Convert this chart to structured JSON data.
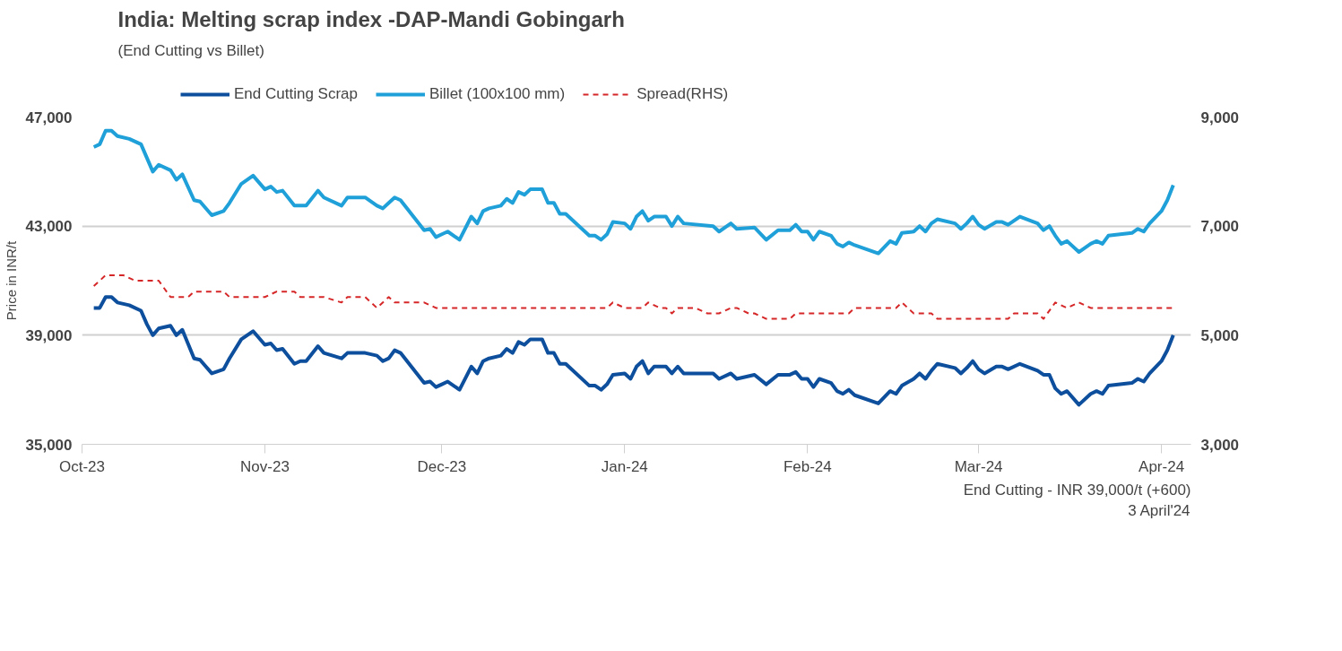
{
  "chart_data": {
    "type": "line",
    "title": "India: Melting scrap index -DAP-Mandi Gobingarh",
    "subtitle": "(End Cutting vs Billet)",
    "ylabel": "Price in INR/t",
    "x": [
      "2023-10-03",
      "2023-10-04",
      "2023-10-05",
      "2023-10-06",
      "2023-10-07",
      "2023-10-09",
      "2023-10-11",
      "2023-10-12",
      "2023-10-13",
      "2023-10-14",
      "2023-10-16",
      "2023-10-17",
      "2023-10-18",
      "2023-10-20",
      "2023-10-21",
      "2023-10-23",
      "2023-10-25",
      "2023-10-26",
      "2023-10-28",
      "2023-10-30",
      "2023-11-01",
      "2023-11-02",
      "2023-11-03",
      "2023-11-04",
      "2023-11-06",
      "2023-11-07",
      "2023-11-08",
      "2023-11-10",
      "2023-11-11",
      "2023-11-14",
      "2023-11-15",
      "2023-11-18",
      "2023-11-20",
      "2023-11-21",
      "2023-11-22",
      "2023-11-23",
      "2023-11-24",
      "2023-11-28",
      "2023-11-29",
      "2023-11-30",
      "2023-12-01",
      "2023-12-02",
      "2023-12-04",
      "2023-12-06",
      "2023-12-07",
      "2023-12-08",
      "2023-12-09",
      "2023-12-11",
      "2023-12-12",
      "2023-12-13",
      "2023-12-14",
      "2023-12-15",
      "2023-12-16",
      "2023-12-18",
      "2023-12-19",
      "2023-12-20",
      "2023-12-21",
      "2023-12-22",
      "2023-12-26",
      "2023-12-27",
      "2023-12-28",
      "2023-12-29",
      "2023-12-30",
      "2024-01-01",
      "2024-01-02",
      "2024-01-03",
      "2024-01-04",
      "2024-01-05",
      "2024-01-06",
      "2024-01-08",
      "2024-01-09",
      "2024-01-10",
      "2024-01-11",
      "2024-01-16",
      "2024-01-17",
      "2024-01-19",
      "2024-01-20",
      "2024-01-23",
      "2024-01-25",
      "2024-01-27",
      "2024-01-29",
      "2024-01-30",
      "2024-01-31",
      "2024-02-01",
      "2024-02-02",
      "2024-02-03",
      "2024-02-05",
      "2024-02-06",
      "2024-02-07",
      "2024-02-08",
      "2024-02-09",
      "2024-02-13",
      "2024-02-15",
      "2024-02-16",
      "2024-02-17",
      "2024-02-19",
      "2024-02-20",
      "2024-02-21",
      "2024-02-22",
      "2024-02-23",
      "2024-02-26",
      "2024-02-27",
      "2024-02-28",
      "2024-02-29",
      "2024-03-01",
      "2024-03-02",
      "2024-03-04",
      "2024-03-05",
      "2024-03-06",
      "2024-03-08",
      "2024-03-11",
      "2024-03-12",
      "2024-03-13",
      "2024-03-14",
      "2024-03-15",
      "2024-03-16",
      "2024-03-18",
      "2024-03-20",
      "2024-03-21",
      "2024-03-22",
      "2024-03-23",
      "2024-03-27",
      "2024-03-28",
      "2024-03-29",
      "2024-03-30",
      "2024-04-01",
      "2024-04-02",
      "2024-04-03"
    ],
    "series": [
      {
        "name": "End Cutting Scrap",
        "color": "#0d4f9c",
        "values": [
          40000,
          40000,
          40400,
          40400,
          40200,
          40100,
          39900,
          39400,
          39000,
          39250,
          39350,
          39000,
          39200,
          38150,
          38100,
          37600,
          37750,
          38150,
          38850,
          39150,
          38650,
          38700,
          38450,
          38500,
          37950,
          38050,
          38050,
          38600,
          38350,
          38150,
          38350,
          38350,
          38250,
          38050,
          38150,
          38450,
          38350,
          37250,
          37300,
          37100,
          37200,
          37300,
          37000,
          37850,
          37600,
          38050,
          38150,
          38250,
          38500,
          38350,
          38750,
          38650,
          38850,
          38850,
          38350,
          38350,
          37950,
          37950,
          37150,
          37150,
          37000,
          37200,
          37550,
          37600,
          37400,
          37850,
          38050,
          37600,
          37850,
          37850,
          37600,
          37850,
          37600,
          37600,
          37400,
          37600,
          37400,
          37550,
          37200,
          37550,
          37550,
          37650,
          37400,
          37400,
          37100,
          37400,
          37250,
          36950,
          36850,
          37000,
          36800,
          36500,
          36950,
          36850,
          37150,
          37400,
          37600,
          37400,
          37700,
          37950,
          37800,
          37600,
          37800,
          38050,
          37750,
          37600,
          37850,
          37850,
          37750,
          37950,
          37700,
          37550,
          37550,
          37050,
          36850,
          36950,
          36450,
          36850,
          36950,
          36850,
          37150,
          37250,
          37400,
          37300,
          37600,
          38050,
          38450,
          39000
        ]
      },
      {
        "name": "Billet (100x100 mm)",
        "color": "#1fa0d8",
        "values": [
          45900,
          46000,
          46500,
          46500,
          46300,
          46200,
          46000,
          45500,
          45000,
          45250,
          45050,
          44700,
          44900,
          43950,
          43900,
          43400,
          43550,
          43850,
          44550,
          44850,
          44350,
          44450,
          44250,
          44300,
          43750,
          43750,
          43750,
          44300,
          44050,
          43750,
          44050,
          44050,
          43750,
          43650,
          43850,
          44050,
          43950,
          42850,
          42900,
          42600,
          42700,
          42800,
          42500,
          43350,
          43100,
          43550,
          43650,
          43750,
          44000,
          43850,
          44250,
          44150,
          44350,
          44350,
          43850,
          43850,
          43450,
          43450,
          42650,
          42650,
          42500,
          42700,
          43150,
          43100,
          42900,
          43350,
          43550,
          43200,
          43350,
          43350,
          43000,
          43350,
          43100,
          43000,
          42800,
          43100,
          42900,
          42950,
          42500,
          42850,
          42850,
          43050,
          42800,
          42800,
          42500,
          42800,
          42650,
          42350,
          42250,
          42400,
          42300,
          42000,
          42450,
          42350,
          42750,
          42800,
          43000,
          42800,
          43100,
          43250,
          43100,
          42900,
          43100,
          43350,
          43050,
          42900,
          43150,
          43150,
          43050,
          43350,
          43100,
          42850,
          43000,
          42650,
          42350,
          42450,
          42050,
          42350,
          42450,
          42350,
          42650,
          42750,
          42900,
          42800,
          43100,
          43550,
          43950,
          44500
        ]
      },
      {
        "name": "Spread(RHS)",
        "color": "#d62728",
        "axis": "y2",
        "line_style": "dashed",
        "x": [
          "2023-10-03",
          "2023-10-05",
          "2023-10-08",
          "2023-10-10",
          "2023-10-14",
          "2023-10-16",
          "2023-10-19",
          "2023-10-20",
          "2023-10-25",
          "2023-10-26",
          "2023-11-01",
          "2023-11-03",
          "2023-11-06",
          "2023-11-07",
          "2023-11-11",
          "2023-11-14",
          "2023-11-15",
          "2023-11-18",
          "2023-11-20",
          "2023-11-22",
          "2023-11-23",
          "2023-11-28",
          "2023-11-30",
          "2023-12-29",
          "2023-12-30",
          "2024-01-01",
          "2024-01-04",
          "2024-01-05",
          "2024-01-07",
          "2024-01-08",
          "2024-01-09",
          "2024-01-10",
          "2024-01-13",
          "2024-01-15",
          "2024-01-17",
          "2024-01-19",
          "2024-01-20",
          "2024-01-22",
          "2024-01-23",
          "2024-01-25",
          "2024-01-29",
          "2024-01-30",
          "2024-02-08",
          "2024-02-09",
          "2024-02-16",
          "2024-02-17",
          "2024-02-19",
          "2024-02-22",
          "2024-02-23",
          "2024-03-06",
          "2024-03-07",
          "2024-03-11",
          "2024-03-12",
          "2024-03-14",
          "2024-03-16",
          "2024-03-18",
          "2024-03-20",
          "2024-04-03"
        ],
        "values": [
          5900,
          6100,
          6100,
          6000,
          6000,
          5700,
          5700,
          5800,
          5800,
          5700,
          5700,
          5800,
          5800,
          5700,
          5700,
          5600,
          5700,
          5700,
          5500,
          5700,
          5600,
          5600,
          5500,
          5500,
          5600,
          5500,
          5500,
          5600,
          5500,
          5500,
          5400,
          5500,
          5500,
          5400,
          5400,
          5500,
          5500,
          5400,
          5400,
          5300,
          5300,
          5400,
          5400,
          5500,
          5500,
          5600,
          5400,
          5400,
          5300,
          5300,
          5400,
          5400,
          5300,
          5600,
          5500,
          5600,
          5500,
          5500
        ]
      }
    ],
    "xlim": [
      "2023-10-01",
      "2024-04-06"
    ],
    "xticks": [
      {
        "value": "2023-10-01",
        "label": "Oct-23"
      },
      {
        "value": "2023-11-01",
        "label": "Nov-23"
      },
      {
        "value": "2023-12-01",
        "label": "Dec-23"
      },
      {
        "value": "2024-01-01",
        "label": "Jan-24"
      },
      {
        "value": "2024-02-01",
        "label": "Feb-24"
      },
      {
        "value": "2024-03-01",
        "label": "Mar-24"
      },
      {
        "value": "2024-04-01",
        "label": "Apr-24"
      }
    ],
    "ylim": [
      35000,
      47000
    ],
    "yticks": [
      {
        "value": 35000,
        "label": "35,000"
      },
      {
        "value": 39000,
        "label": "39,000"
      },
      {
        "value": 43000,
        "label": "43,000"
      },
      {
        "value": 47000,
        "label": "47,000"
      }
    ],
    "y2lim": [
      3000,
      9000
    ],
    "y2ticks": [
      {
        "value": 3000,
        "label": "3,000"
      },
      {
        "value": 5000,
        "label": "5,000"
      },
      {
        "value": 7000,
        "label": "7,000"
      },
      {
        "value": 9000,
        "label": "9,000"
      }
    ],
    "grid": "y",
    "legend": "top",
    "line_style": "solid",
    "marker": "none",
    "annotations": [
      "End Cutting - INR 39,000/t (+600)",
      "3 April'24"
    ]
  }
}
